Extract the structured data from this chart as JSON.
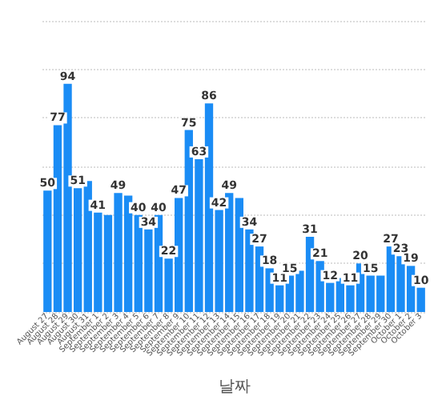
{
  "chart_data": {
    "type": "bar",
    "xlabel": "날짜",
    "categories": [
      "August 27",
      "August 28",
      "August 29",
      "August 30",
      "August 31",
      "September 1",
      "September 2",
      "September 3",
      "September 4",
      "September 5",
      "September 6",
      "September 7",
      "September 8",
      "September 9",
      "September 10",
      "September 11",
      "September 12",
      "September 13",
      "September 14",
      "September 15",
      "September 16",
      "September 17",
      "September 18",
      "September 19",
      "September 20",
      "September 21",
      "September 22",
      "September 23",
      "September 24",
      "September 25",
      "September 26",
      "September 27",
      "September 28",
      "September 29",
      "September 30",
      "October 1",
      "October 2",
      "October 3"
    ],
    "values": [
      50,
      77,
      94,
      51,
      54,
      41,
      40,
      49,
      48,
      40,
      34,
      40,
      22,
      47,
      75,
      63,
      86,
      42,
      49,
      47,
      34,
      27,
      18,
      11,
      15,
      17,
      31,
      21,
      12,
      14,
      11,
      20,
      15,
      15,
      27,
      23,
      19,
      10
    ],
    "value_labels": [
      "50",
      "77",
      "94",
      "51",
      null,
      "41",
      null,
      "49",
      null,
      "40",
      "34",
      "40",
      "22",
      "47",
      "75",
      "63",
      "86",
      "42",
      "49",
      null,
      "34",
      "27",
      "18",
      "11",
      "15",
      null,
      "31",
      "21",
      "12",
      null,
      "11",
      "20",
      "15",
      null,
      "27",
      "23",
      "19",
      "10"
    ],
    "color": "#1a8cf5",
    "ylim": [
      0,
      120
    ],
    "yticks": [
      0,
      20,
      40,
      60,
      80,
      100,
      120
    ],
    "grid": true,
    "tick_labels": "x"
  }
}
